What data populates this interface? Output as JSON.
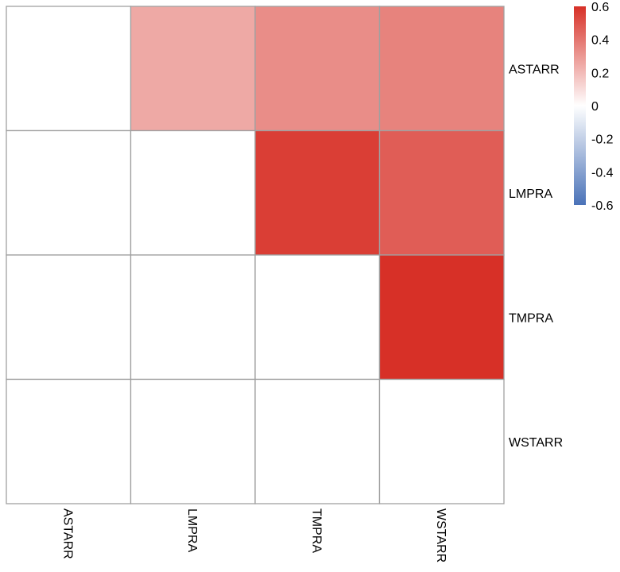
{
  "chart_data": {
    "type": "heatmap",
    "rows": [
      "ASTARR",
      "LMPRA",
      "TMPRA",
      "WSTARR"
    ],
    "columns": [
      "ASTARR",
      "LMPRA",
      "TMPRA",
      "WSTARR"
    ],
    "values": [
      [
        null,
        0.25,
        0.33,
        0.36
      ],
      [
        null,
        null,
        0.56,
        0.47
      ],
      [
        null,
        null,
        null,
        0.65
      ],
      [
        null,
        null,
        null,
        null
      ]
    ],
    "color_scale": {
      "min": -0.6,
      "max": 0.6,
      "low_color": "#4a72b8",
      "mid_color": "#ffffff",
      "high_color": "#d73027",
      "ticks": [
        "0.6",
        "0.4",
        "0.2",
        "0",
        "-0.2",
        "-0.4",
        "-0.6"
      ]
    },
    "grid_color": "#a0a0a0",
    "legend_position": "top-right"
  }
}
